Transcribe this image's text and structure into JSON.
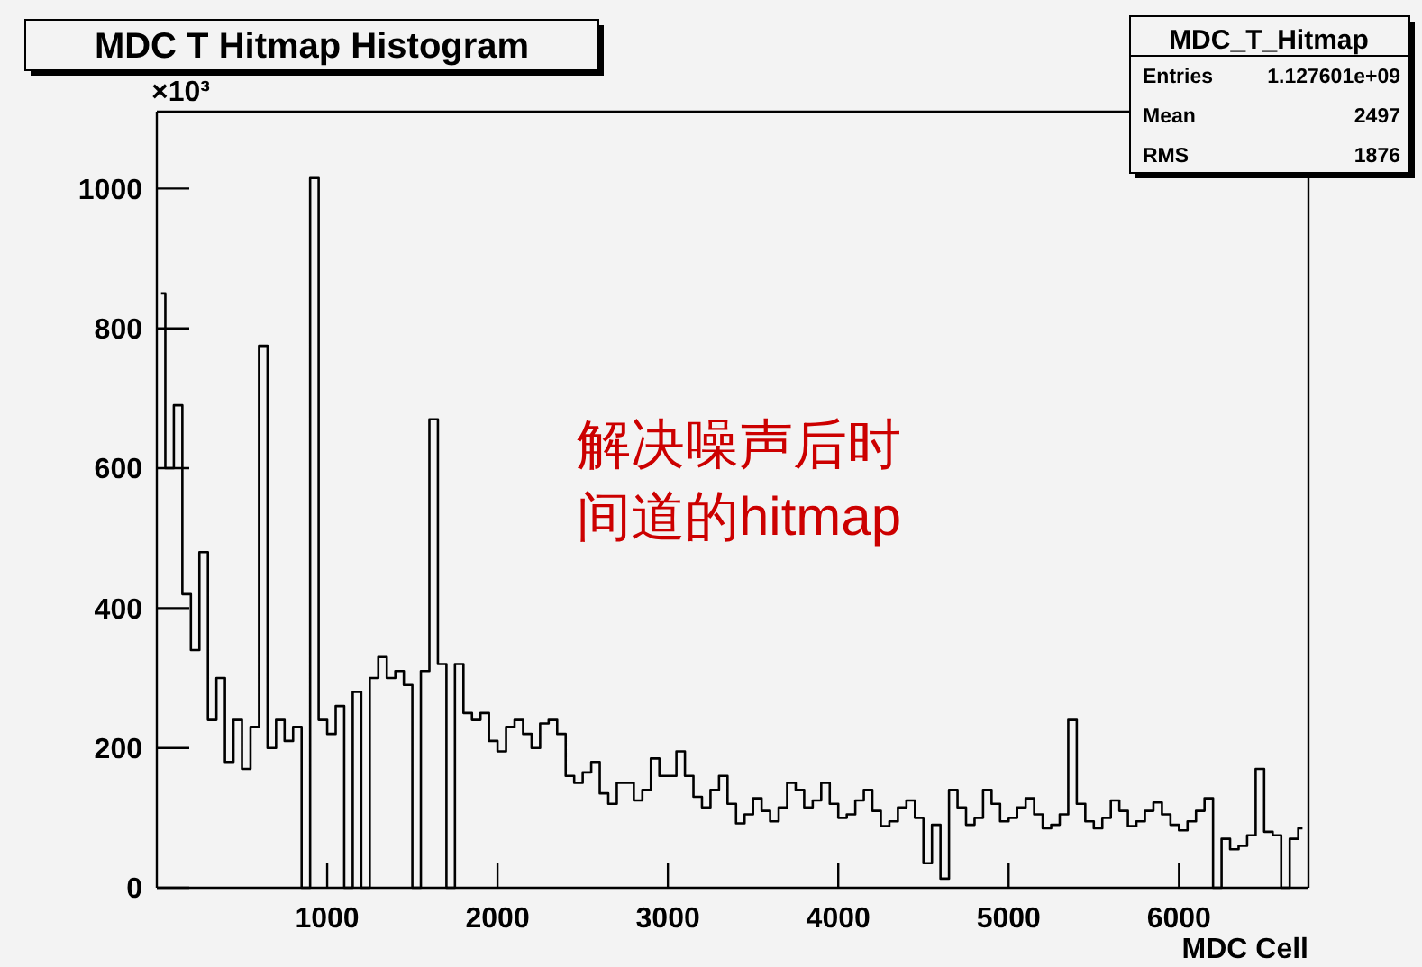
{
  "chart_data": {
    "type": "step",
    "title": "MDC T Hitmap Histogram",
    "xlabel": "MDC Cell",
    "ylabel": "×10³",
    "annotations": [
      "MDC_T_Hitmap",
      "Entries 1.127601e+09",
      "Mean 2497",
      "RMS 1876",
      "解决噪声后时间道的hitmap"
    ],
    "x": [
      25,
      75,
      125,
      175,
      225,
      275,
      325,
      375,
      425,
      475,
      525,
      575,
      625,
      675,
      725,
      775,
      825,
      875,
      925,
      975,
      1025,
      1075,
      1125,
      1175,
      1225,
      1275,
      1325,
      1375,
      1425,
      1475,
      1525,
      1575,
      1625,
      1675,
      1725,
      1775,
      1825,
      1875,
      1925,
      1975,
      2025,
      2075,
      2125,
      2175,
      2225,
      2275,
      2325,
      2375,
      2425,
      2475,
      2525,
      2575,
      2625,
      2675,
      2725,
      2775,
      2825,
      2875,
      2925,
      2975,
      3025,
      3075,
      3125,
      3175,
      3225,
      3275,
      3325,
      3375,
      3425,
      3475,
      3525,
      3575,
      3625,
      3675,
      3725,
      3775,
      3825,
      3875,
      3925,
      3975,
      4025,
      4075,
      4125,
      4175,
      4225,
      4275,
      4325,
      4375,
      4425,
      4475,
      4525,
      4575,
      4625,
      4675,
      4725,
      4775,
      4825,
      4875,
      4925,
      4975,
      5025,
      5075,
      5125,
      5175,
      5225,
      5275,
      5325,
      5375,
      5425,
      5475,
      5525,
      5575,
      5625,
      5675,
      5725,
      5775,
      5825,
      5875,
      5925,
      5975,
      6025,
      6075,
      6125,
      6175,
      6225,
      6275,
      6325,
      6375,
      6425,
      6475,
      6525,
      6575,
      6625,
      6675,
      6725
    ],
    "values": [
      850,
      600,
      690,
      420,
      340,
      480,
      240,
      300,
      180,
      240,
      170,
      230,
      775,
      200,
      240,
      210,
      230,
      0,
      1015,
      240,
      220,
      260,
      0,
      280,
      0,
      300,
      330,
      300,
      310,
      290,
      0,
      310,
      670,
      320,
      0,
      320,
      250,
      240,
      250,
      210,
      195,
      230,
      240,
      220,
      200,
      235,
      240,
      220,
      160,
      150,
      165,
      180,
      135,
      120,
      150,
      150,
      125,
      140,
      185,
      160,
      160,
      195,
      160,
      130,
      115,
      140,
      160,
      120,
      92,
      105,
      128,
      110,
      95,
      115,
      150,
      140,
      115,
      125,
      150,
      120,
      100,
      105,
      125,
      140,
      110,
      88,
      95,
      115,
      125,
      100,
      35,
      90,
      13,
      140,
      115,
      90,
      100,
      140,
      120,
      95,
      100,
      115,
      128,
      105,
      85,
      90,
      105,
      240,
      120,
      95,
      85,
      100,
      125,
      110,
      88,
      95,
      110,
      122,
      105,
      90,
      82,
      95,
      110,
      128,
      0,
      70,
      55,
      60,
      75,
      170,
      80,
      75,
      0,
      70,
      85
    ],
    "color": "#000000",
    "xlim": [
      0,
      6760
    ],
    "ylim": [
      0,
      1110
    ],
    "xticks": [
      1000,
      2000,
      3000,
      4000,
      5000,
      6000
    ],
    "yticks": [
      0,
      200,
      400,
      600,
      800,
      1000
    ],
    "grid": false,
    "legend": false
  }
}
